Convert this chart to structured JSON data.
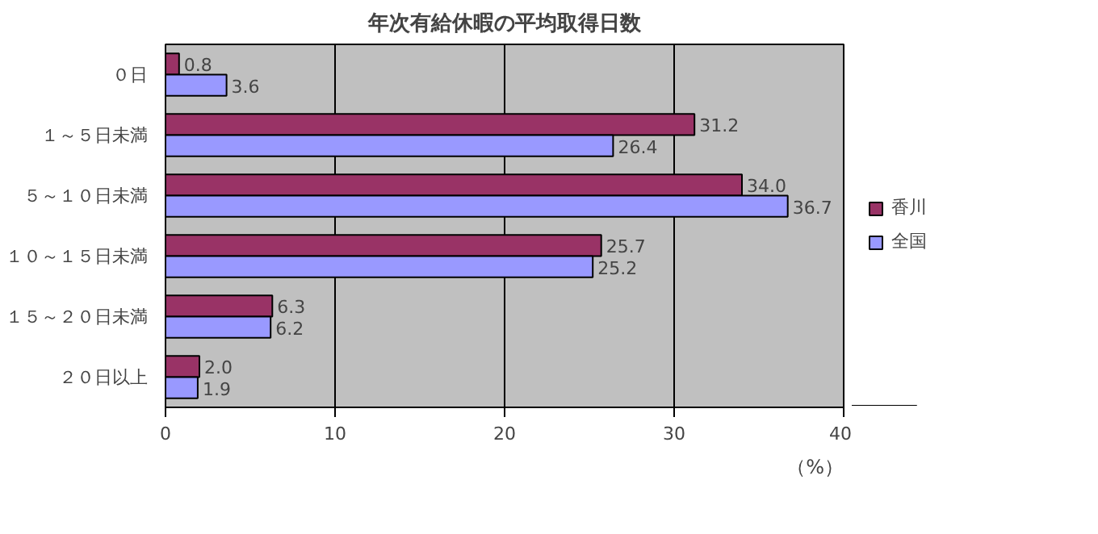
{
  "chart_data": {
    "type": "bar",
    "orientation": "horizontal",
    "title": "年次有給休暇の平均取得日数",
    "categories": [
      "０日",
      "１～５日未満",
      "５～１０日未満",
      "１０～１５日未満",
      "１５～２０日未満",
      "２０日以上"
    ],
    "series": [
      {
        "name": "香川",
        "color": "#993366",
        "values": [
          0.8,
          31.2,
          34.0,
          25.7,
          6.3,
          2.0
        ],
        "value_labels": [
          "0.8",
          "31.2",
          "34.0",
          "25.7",
          "6.3",
          "2.0"
        ]
      },
      {
        "name": "全国",
        "color": "#9999ff",
        "values": [
          3.6,
          26.4,
          36.7,
          25.2,
          6.2,
          1.9
        ],
        "value_labels": [
          "3.6",
          "26.4",
          "36.7",
          "25.2",
          "6.2",
          "1.9"
        ]
      }
    ],
    "xlim": [
      0,
      40
    ],
    "xticks": [
      0,
      10,
      20,
      30,
      40
    ],
    "grid": "x",
    "legend": "right",
    "annotations": [
      "（%）"
    ]
  }
}
